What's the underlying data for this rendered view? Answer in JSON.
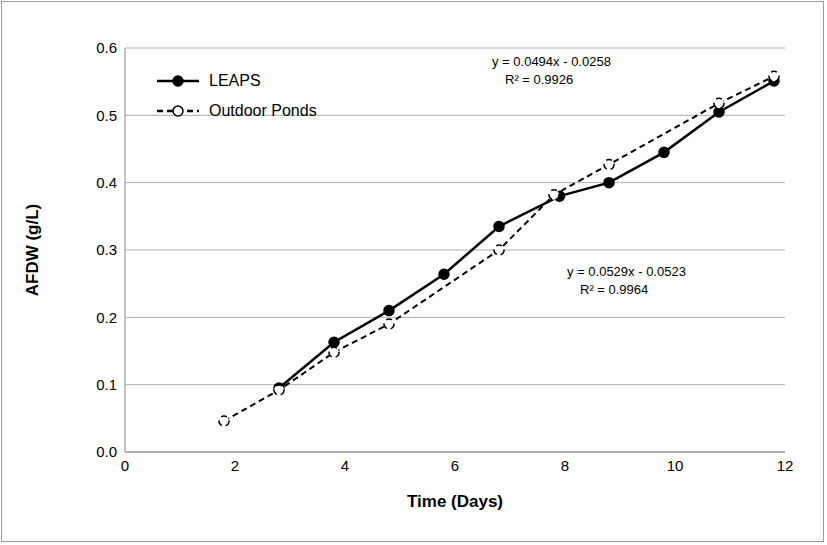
{
  "chart_data": {
    "type": "line",
    "xlabel": "Time (Days)",
    "ylabel": "AFDW (g/L)",
    "xlim": [
      0,
      12
    ],
    "xticks": [
      0,
      2,
      4,
      6,
      8,
      10,
      12
    ],
    "ylim": [
      0,
      0.6
    ],
    "yticks": [
      {
        "value": 0,
        "label": "0.0"
      },
      0.1,
      0.2,
      0.3,
      0.4,
      0.5,
      0.6
    ],
    "grid": true,
    "legend": "upper left",
    "series": [
      {
        "name": "LEAPS",
        "color": "#000000",
        "marker": "filled circle",
        "line_style": "solid",
        "x": [
          2.8,
          3.8,
          4.8,
          5.8,
          6.8,
          7.9,
          8.8,
          9.8,
          10.8,
          11.8
        ],
        "values": [
          0.095,
          0.163,
          0.21,
          0.264,
          0.335,
          0.38,
          0.4,
          0.445,
          0.505,
          0.551
        ]
      },
      {
        "name": "Outdoor Ponds",
        "color": "#000000",
        "marker": "open circle",
        "line_style": "dashed",
        "x": [
          1.8,
          2.8,
          3.8,
          4.8,
          6.8,
          7.8,
          8.8,
          10.8,
          11.8
        ],
        "values": [
          0.046,
          0.092,
          0.148,
          0.19,
          0.3,
          0.382,
          0.427,
          0.518,
          0.558
        ]
      }
    ],
    "annotations": [
      "y = 0.0494x - 0.0258",
      "R² = 0.9926",
      "y = 0.0529x - 0.0523",
      "R² = 0.9964"
    ]
  }
}
